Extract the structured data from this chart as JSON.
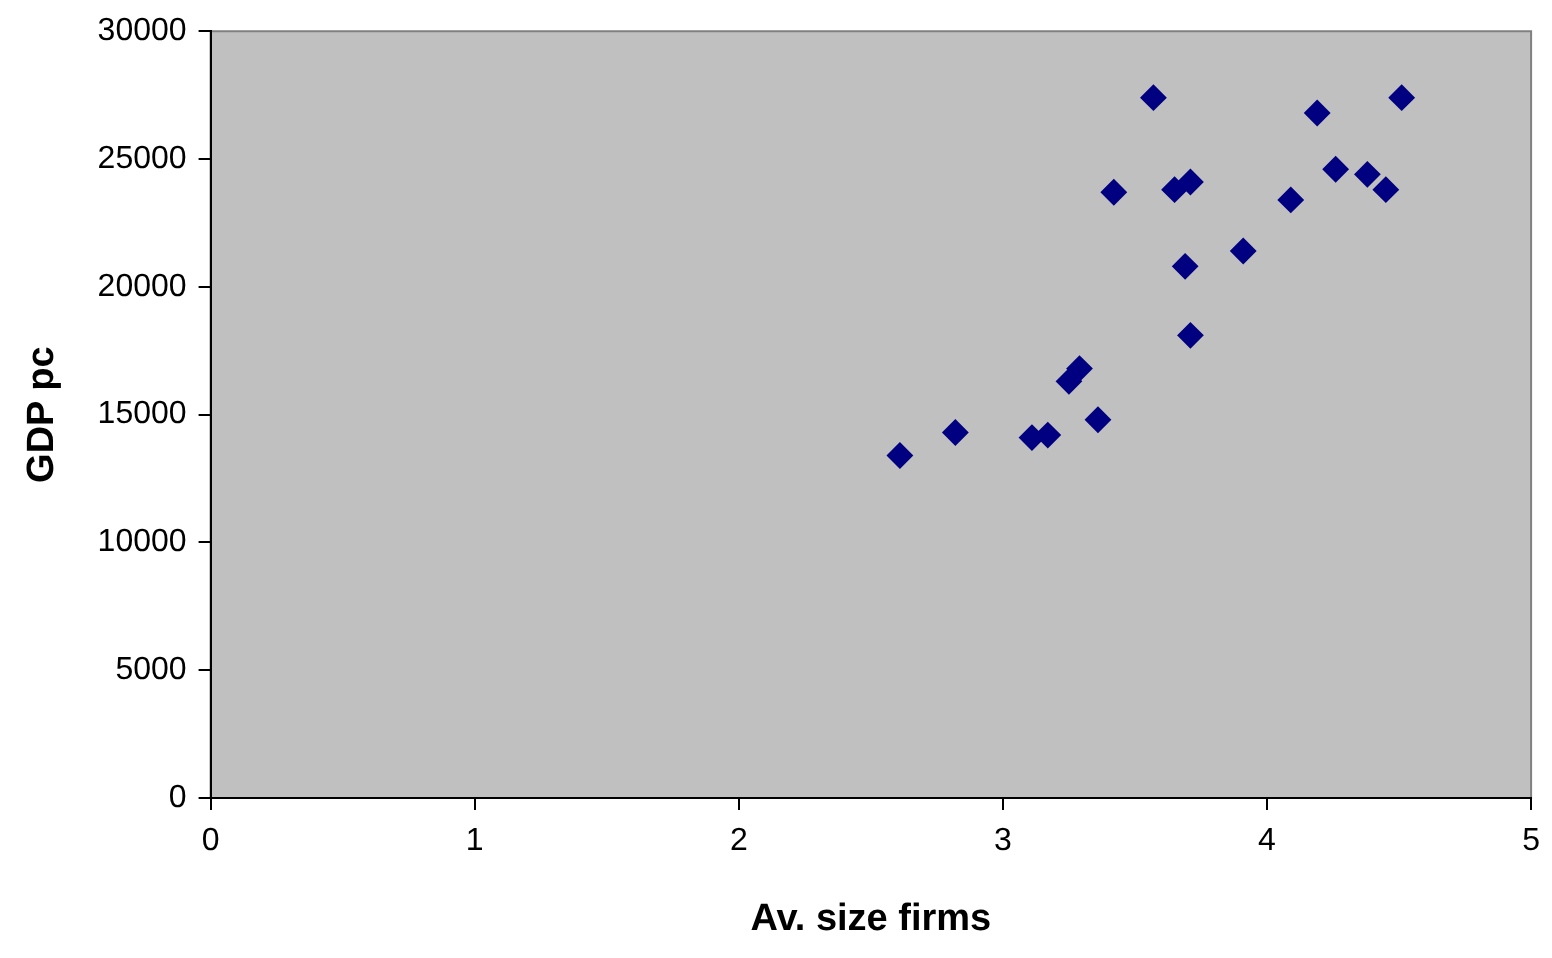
{
  "chart_data": {
    "type": "scatter",
    "xlabel": "Av. size firms",
    "ylabel": "GDP pc",
    "x": [
      2.61,
      2.82,
      3.11,
      3.17,
      3.25,
      3.29,
      3.36,
      3.42,
      3.57,
      3.65,
      3.71,
      3.69,
      3.71,
      3.91,
      4.09,
      4.19,
      4.26,
      4.38,
      4.45,
      4.51
    ],
    "series": [
      {
        "color": "#000080",
        "values": [
          13400,
          14300,
          14100,
          14200,
          16300,
          16800,
          14800,
          23700,
          27400,
          23800,
          24100,
          20800,
          18100,
          21400,
          23400,
          26800,
          24600,
          24400,
          23800,
          27400
        ]
      }
    ],
    "xlim": [
      0,
      5
    ],
    "xticks": [
      0,
      1,
      2,
      3,
      4,
      5
    ],
    "ylim": [
      0,
      30000
    ],
    "yticks": [
      0,
      5000,
      10000,
      15000,
      20000,
      25000,
      30000
    ],
    "marker": "diamond",
    "grid": false,
    "legend": false
  }
}
